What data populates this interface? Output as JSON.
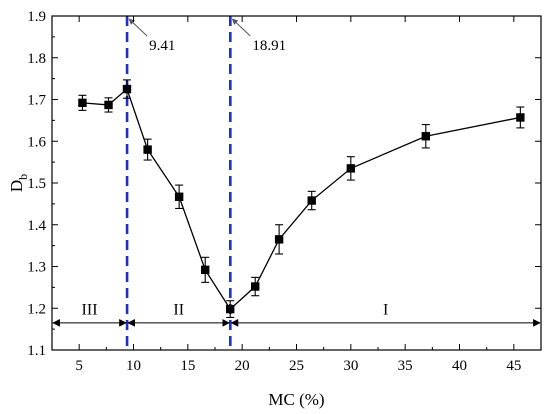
{
  "chart_data": {
    "type": "line",
    "xlabel": "MC (%)",
    "ylabel_main": "D",
    "ylabel_sub": "b",
    "xlim": [
      2.5,
      47.5
    ],
    "ylim": [
      1.1,
      1.9
    ],
    "xticks": [
      "5",
      "10",
      "15",
      "20",
      "25",
      "30",
      "35",
      "40",
      "45"
    ],
    "yticks": [
      "1.1",
      "1.2",
      "1.3",
      "1.4",
      "1.5",
      "1.6",
      "1.7",
      "1.8",
      "1.9"
    ],
    "series": [
      {
        "marker": "square",
        "color": "#000000",
        "x": [
          5.3,
          7.7,
          9.4,
          11.3,
          14.2,
          16.6,
          18.9,
          21.2,
          23.4,
          26.4,
          30.0,
          36.9,
          45.6
        ],
        "y": [
          1.692,
          1.687,
          1.725,
          1.58,
          1.467,
          1.292,
          1.198,
          1.252,
          1.365,
          1.458,
          1.535,
          1.612,
          1.657
        ],
        "error": [
          0.018,
          0.017,
          0.022,
          0.025,
          0.028,
          0.03,
          0.02,
          0.022,
          0.035,
          0.022,
          0.028,
          0.028,
          0.025
        ]
      }
    ],
    "reference_lines": [
      {
        "x": 9.41,
        "label": "9.41",
        "color": "#1f2fcf"
      },
      {
        "x": 18.91,
        "label": "18.91",
        "color": "#1f2fcf"
      }
    ],
    "regions": [
      {
        "label": "III",
        "from": 2.5,
        "to": 9.41
      },
      {
        "label": "II",
        "from": 9.41,
        "to": 18.91
      },
      {
        "label": "I",
        "from": 18.91,
        "to": 47.5
      }
    ],
    "region_arrow_y": 1.165,
    "region_label_y": 1.185
  }
}
